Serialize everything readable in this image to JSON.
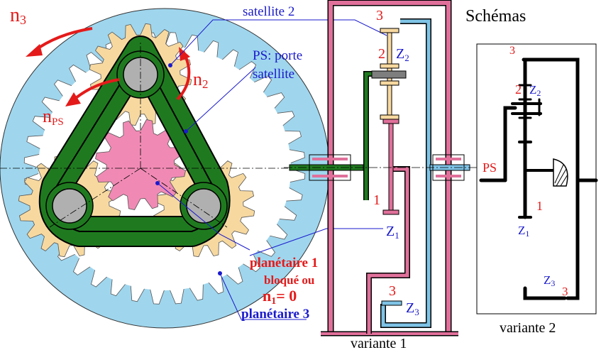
{
  "labels": {
    "satellite2": "satellite 2",
    "ps_line1": "PS: porte",
    "ps_line2": "satellite",
    "n3": "n",
    "n3_sub": "3",
    "n2": "n",
    "n2_sub": "2",
    "nps": "n",
    "nps_sub": "PS",
    "planetaire1": "planétaire 1",
    "bloque": "bloqué ou",
    "n1_eq": "n",
    "n1_eq_sub": "1",
    "n1_eq_val": "= 0",
    "planetaire3": "planétaire 3",
    "schemas": "Schémas",
    "variante1": "variante 1",
    "variante2": "variante 2",
    "v1_3_top": "3",
    "v1_2": "2",
    "v1_z2": "Z",
    "v1_z2_sub": "2",
    "v1_1": "1",
    "v1_z1": "Z",
    "v1_z1_sub": "1",
    "v1_3_bot": "3",
    "v1_z3": "Z",
    "v1_z3_sub": "3",
    "v2_3_top": "3",
    "v2_2": "2",
    "v2_z2": "Z",
    "v2_z2_sub": "2",
    "v2_ps": "PS",
    "v2_1": "1",
    "v2_z1": "Z",
    "v2_z1_sub": "1",
    "v2_z3": "Z",
    "v2_z3_sub": "3",
    "v2_3_bot": "3"
  },
  "colors": {
    "ring": "#9fd6ee",
    "planet": "#f7d9a0",
    "sun": "#f08ab4",
    "carrier": "#1f7a1f",
    "hub": "#b0b0b0",
    "pink_frame": "#e0709a",
    "blue_frame": "#7ec3e6",
    "red_text": "#e41a1a",
    "blue_text": "#1a1acc"
  }
}
